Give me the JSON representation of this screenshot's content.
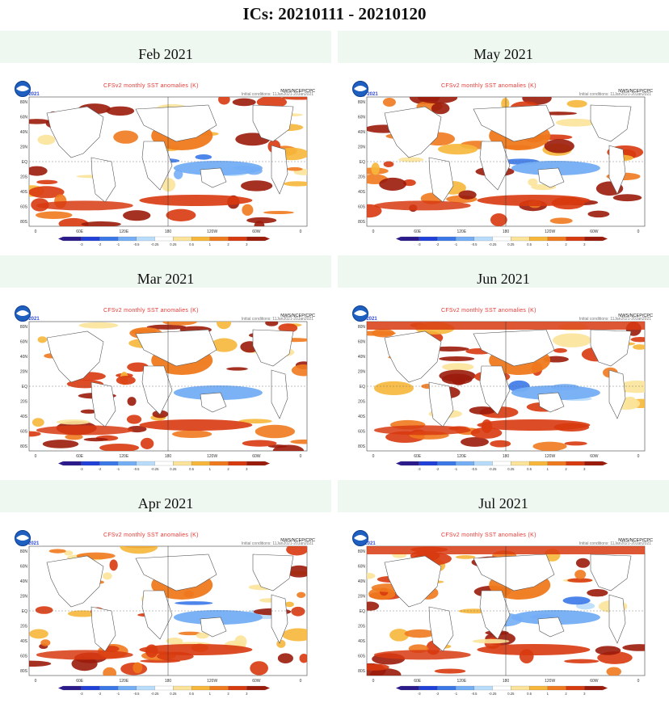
{
  "page": {
    "title": "ICs: 20210111 - 20210120"
  },
  "map_text": {
    "title": "CFSv2 monthly SST anomalies (K)",
    "credit": "NWS/NCEP/CPC",
    "ic_text": "Initial conditions: 11Jan2021-20Jan2021"
  },
  "panels": [
    {
      "label": "Feb 2021",
      "short": "Feb 2021"
    },
    {
      "label": "May 2021",
      "short": "May 2021"
    },
    {
      "label": "Mar 2021",
      "short": "Mar 2021"
    },
    {
      "label": "Jun 2021",
      "short": "Jun 2021"
    },
    {
      "label": "Apr 2021",
      "short": "Apr 2021"
    },
    {
      "label": "Jul 2021",
      "short": "Jul 2021"
    }
  ],
  "lat_ticks": [
    "80N",
    "60N",
    "40N",
    "20N",
    "EQ",
    "20S",
    "40S",
    "60S",
    "80S"
  ],
  "lon_ticks": [
    "0",
    "60E",
    "120E",
    "180",
    "120W",
    "60W",
    "0"
  ],
  "colorbar_ticks": [
    "-3",
    "-2",
    "-1",
    "-0.5",
    "-0.25",
    "0.25",
    "0.5",
    "1",
    "2",
    "3"
  ],
  "colorbar_colors": [
    "#2a1a8c",
    "#2040d8",
    "#3a78e8",
    "#74aef5",
    "#b8dcfb",
    "#ffffff",
    "#fbe39a",
    "#f6b73a",
    "#ef7a1e",
    "#d83a10",
    "#9b1b0b"
  ],
  "anomaly_colors": {
    "deep_red": "#9b1b0b",
    "red": "#d83a10",
    "orange": "#ef7a1e",
    "yellow": "#f6b73a",
    "light_yellow": "#fbe39a",
    "light_blue": "#b8dcfb",
    "blue": "#74aef5",
    "mid_blue": "#3a78e8"
  }
}
